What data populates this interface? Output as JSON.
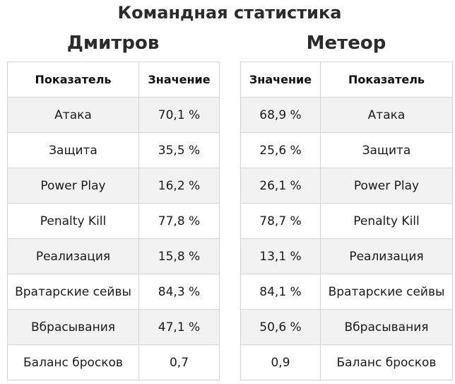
{
  "title": "Командная статистика",
  "teams": [
    {
      "name": "Дмитров",
      "headers": {
        "metric": "Показатель",
        "value": "Значение"
      },
      "rows": [
        {
          "metric": "Атака",
          "value": "70,1 %"
        },
        {
          "metric": "Защита",
          "value": "35,5 %"
        },
        {
          "metric": "Power Play",
          "value": "16,2 %"
        },
        {
          "metric": "Penalty Kill",
          "value": "77,8 %"
        },
        {
          "metric": "Реализация",
          "value": "15,8 %"
        },
        {
          "metric": "Вратарские сейвы",
          "value": "84,3 %"
        },
        {
          "metric": "Вбрасывания",
          "value": "47,1 %"
        },
        {
          "metric": "Баланс бросков",
          "value": "0,7"
        }
      ]
    },
    {
      "name": "Метеор",
      "headers": {
        "value": "Значение",
        "metric": "Показатель"
      },
      "rows": [
        {
          "value": "68,9 %",
          "metric": "Атака"
        },
        {
          "value": "25,6 %",
          "metric": "Защита"
        },
        {
          "value": "26,1 %",
          "metric": "Power Play"
        },
        {
          "value": "78,7 %",
          "metric": "Penalty Kill"
        },
        {
          "value": "13,1 %",
          "metric": "Реализация"
        },
        {
          "value": "84,1 %",
          "metric": "Вратарские сейвы"
        },
        {
          "value": "50,6 %",
          "metric": "Вбрасывания"
        },
        {
          "value": "0,9",
          "metric": "Баланс бросков"
        }
      ]
    }
  ]
}
